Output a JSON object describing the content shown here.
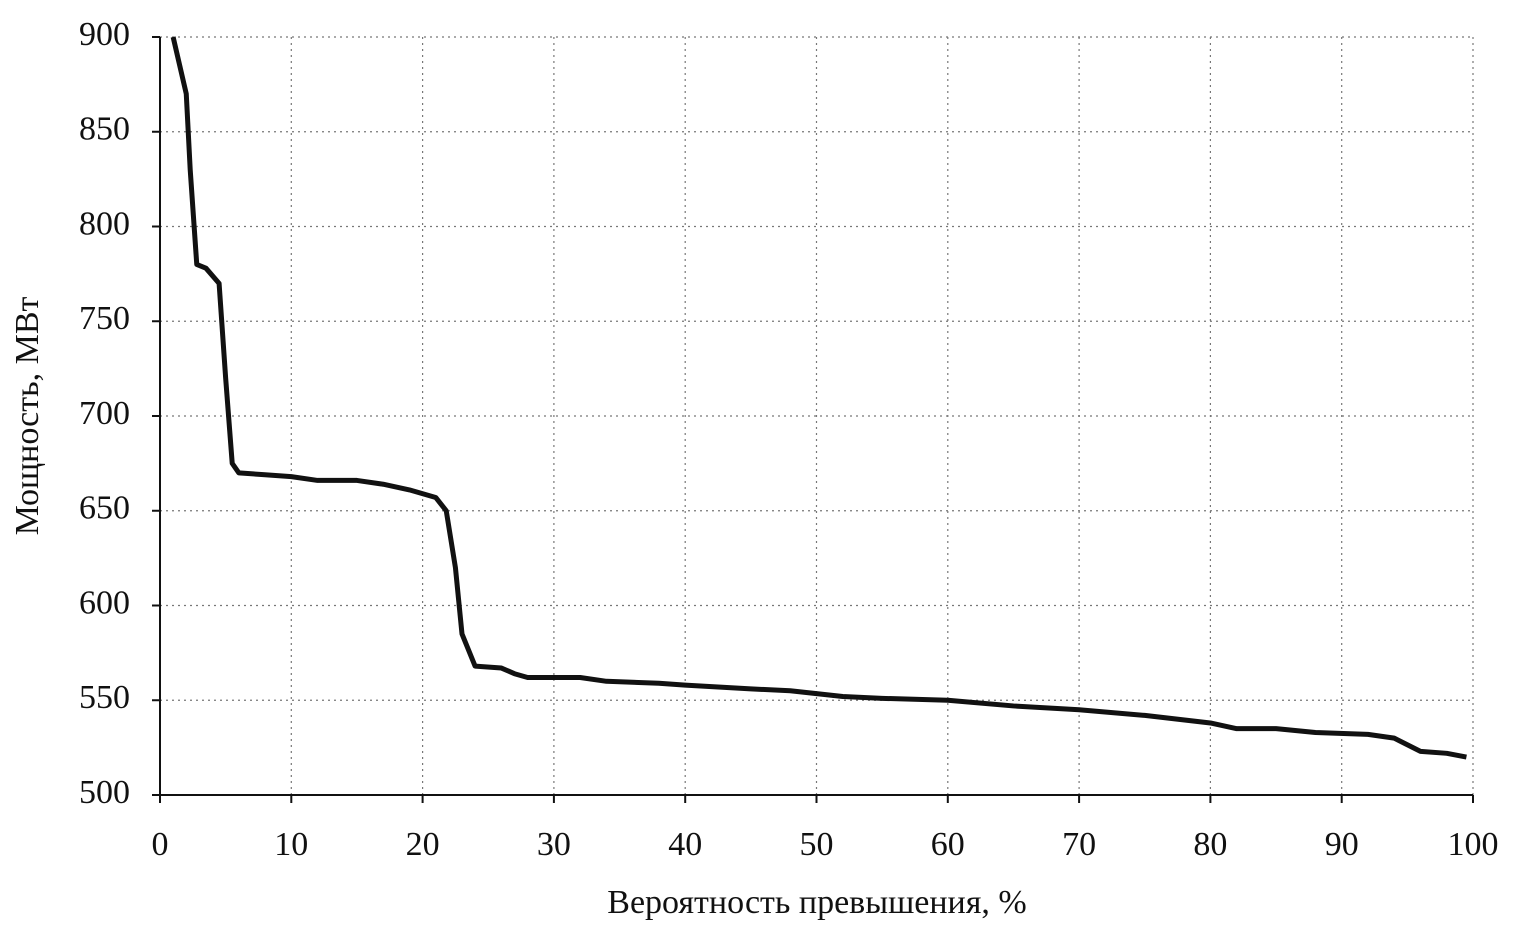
{
  "chart_data": {
    "type": "line",
    "x_label": "Вероятность превышения, %",
    "y_label": "Мощность, МВт",
    "x": [
      1,
      1.5,
      2,
      2.3,
      2.8,
      3.5,
      4.5,
      5,
      5.5,
      6,
      8,
      10,
      12,
      15,
      17,
      19,
      21,
      21.8,
      22.5,
      23,
      24,
      26,
      27,
      28,
      32,
      34,
      38,
      40,
      45,
      48,
      52,
      55,
      60,
      65,
      70,
      75,
      80,
      82,
      85,
      88,
      92,
      94,
      96,
      98,
      99.5
    ],
    "series": [
      {
        "color": "#111111",
        "values": [
          900,
          885,
          870,
          830,
          780,
          778,
          770,
          720,
          675,
          670,
          669,
          668,
          666,
          666,
          664,
          661,
          657,
          650,
          620,
          585,
          568,
          567,
          564,
          562,
          562,
          560,
          559,
          558,
          556,
          555,
          552,
          551,
          550,
          547,
          545,
          542,
          538,
          535,
          535,
          533,
          532,
          530,
          523,
          522,
          520
        ]
      }
    ],
    "xlim": [
      0,
      100
    ],
    "xticks": [
      0,
      10,
      20,
      30,
      40,
      50,
      60,
      70,
      80,
      90,
      100
    ],
    "ylim": [
      500,
      900
    ],
    "yticks": [
      500,
      550,
      600,
      650,
      700,
      750,
      800,
      850,
      900
    ],
    "grid": true
  }
}
